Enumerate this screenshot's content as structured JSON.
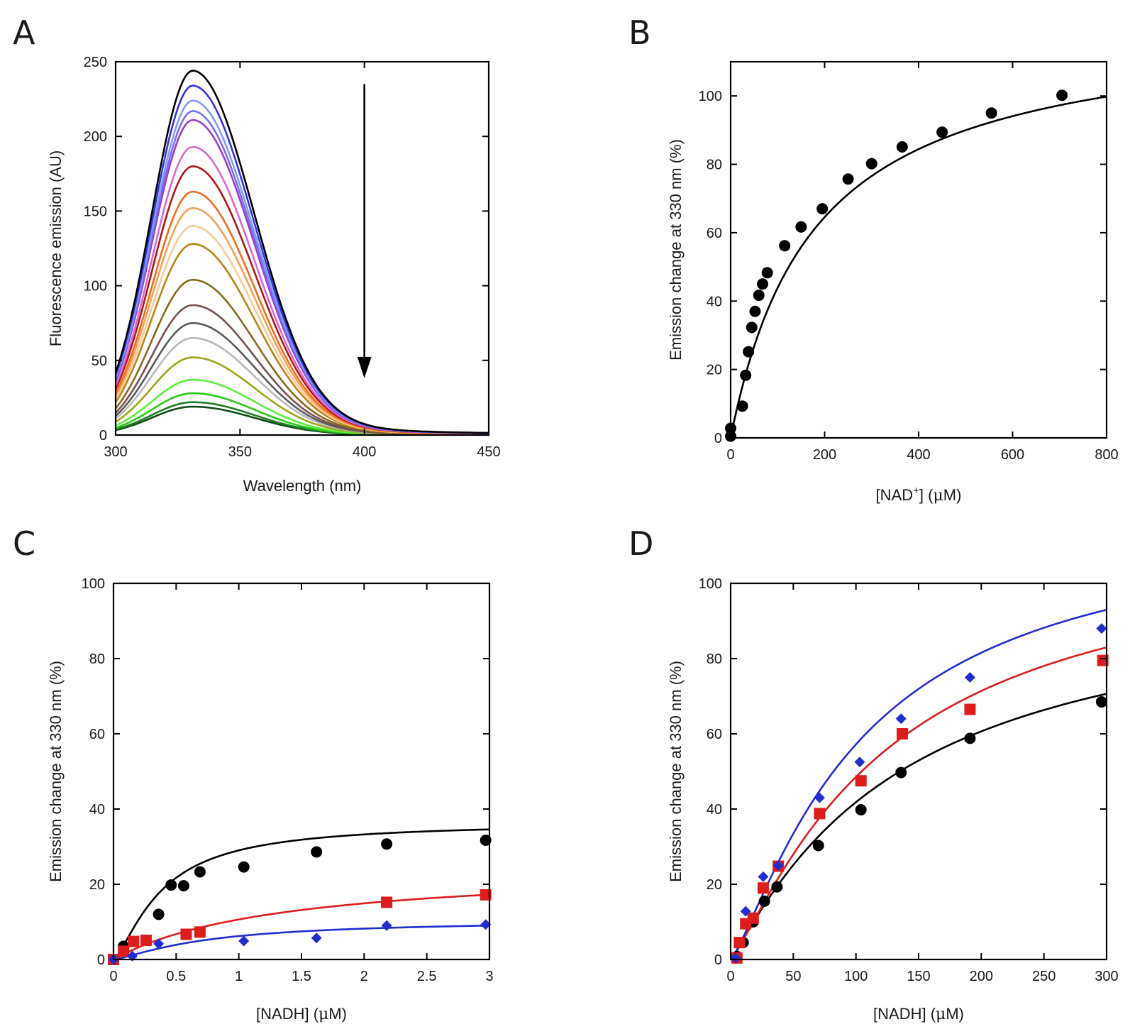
{
  "figure": {
    "panels": [
      "A",
      "B",
      "C",
      "D"
    ]
  },
  "chart_data": [
    {
      "panel": "A",
      "type": "line",
      "title": "",
      "xlabel": "Wavelength (nm)",
      "ylabel": "Fluorescence emission (AU)",
      "xlim": [
        300,
        450
      ],
      "ylim": [
        0,
        250
      ],
      "xticks": [
        300,
        350,
        400,
        450
      ],
      "yticks": [
        0,
        50,
        100,
        150,
        200,
        250
      ],
      "annotation": "arrow at 400 nm pointing downward (decreasing emission)",
      "arrow": {
        "x": 400,
        "y_from": 235,
        "y_to": 40
      },
      "peak_wavelength": 331,
      "series": [
        {
          "peak": 244,
          "color": "#000000"
        },
        {
          "peak": 234,
          "color": "#3333e6"
        },
        {
          "peak": 224,
          "color": "#7f9ff0"
        },
        {
          "peak": 217,
          "color": "#7a6cf0"
        },
        {
          "peak": 211,
          "color": "#9c3cc8"
        },
        {
          "peak": 193,
          "color": "#d968d3"
        },
        {
          "peak": 180,
          "color": "#b01414"
        },
        {
          "peak": 163,
          "color": "#ee6e1a"
        },
        {
          "peak": 152,
          "color": "#f5a055"
        },
        {
          "peak": 140,
          "color": "#f8cb97"
        },
        {
          "peak": 128,
          "color": "#bb8412"
        },
        {
          "peak": 104,
          "color": "#8c6918"
        },
        {
          "peak": 87,
          "color": "#7b4e4e"
        },
        {
          "peak": 75,
          "color": "#5a5a5a"
        },
        {
          "peak": 65,
          "color": "#b8b8b8"
        },
        {
          "peak": 52,
          "color": "#9ea51a"
        },
        {
          "peak": 37,
          "color": "#5cef3b"
        },
        {
          "peak": 28,
          "color": "#2bca16"
        },
        {
          "peak": 22,
          "color": "#1f7d1f"
        },
        {
          "peak": 19,
          "color": "#0f4d16"
        }
      ]
    },
    {
      "panel": "B",
      "type": "scatter",
      "title": "",
      "xlabel": "[NAD+] (μM)",
      "xlabel_parts": [
        "[NAD",
        "+",
        "] (",
        "μ",
        "M)"
      ],
      "ylabel": "Emission change at 330 nm (%)",
      "xlim": [
        0,
        800
      ],
      "ylim": [
        0,
        110
      ],
      "xticks": [
        0,
        200,
        400,
        600,
        800
      ],
      "yticks": [
        0,
        20,
        40,
        60,
        80,
        100
      ],
      "series": [
        {
          "name": "NAD+",
          "color": "#000000",
          "marker": "circle",
          "x": [
            0,
            0,
            25,
            32,
            38,
            45,
            52,
            60,
            68,
            78,
            115,
            150,
            195,
            250,
            300,
            365,
            450,
            555,
            705
          ],
          "y": [
            0.5,
            2.8,
            9.3,
            18.3,
            25.2,
            32.3,
            37.0,
            41.7,
            45.0,
            48.3,
            56.2,
            61.7,
            67.0,
            75.7,
            80.2,
            85.1,
            89.4,
            95.0,
            100.2
          ],
          "fit": {
            "model": "hyperbola",
            "vmax": 122,
            "k": 178
          }
        }
      ]
    },
    {
      "panel": "C",
      "type": "scatter",
      "title": "",
      "xlabel": "[NADH] (μM)",
      "xlabel_parts": [
        "[NADH] (",
        "μ",
        "M)"
      ],
      "ylabel": "Emission change at 330 nm (%)",
      "xlim": [
        0,
        3
      ],
      "ylim": [
        0,
        100
      ],
      "xticks": [
        0,
        0.5,
        1,
        1.5,
        2,
        2.5,
        3
      ],
      "xtick_labels": [
        "0",
        "0.5",
        "1",
        "1.5",
        "2",
        "2.5",
        "3"
      ],
      "yticks": [
        0,
        20,
        40,
        60,
        80,
        100
      ],
      "series": [
        {
          "name": "black",
          "color": "#000000",
          "marker": "circle",
          "x": [
            0,
            0.08,
            0.36,
            0.46,
            0.56,
            0.69,
            1.04,
            1.62,
            2.18,
            2.97
          ],
          "y": [
            0,
            3.5,
            12,
            19.8,
            19.6,
            23.3,
            24.6,
            28.6,
            30.7,
            31.7
          ],
          "fit": {
            "model": "sigmoidal",
            "vmax": 36.5,
            "k": 0.38,
            "n": 1.4
          }
        },
        {
          "name": "red",
          "color": "#dd1c1c",
          "marker": "square",
          "x": [
            0,
            0.08,
            0.16,
            0.26,
            0.58,
            0.69,
            2.18,
            2.97
          ],
          "y": [
            0,
            2.2,
            4.8,
            5.1,
            6.7,
            7.3,
            15.2,
            17.2
          ],
          "fit": {
            "model": "hyperbola",
            "vmax": 25,
            "k": 1.35
          }
        },
        {
          "name": "blue",
          "color": "#1f2ecf",
          "marker": "diamond",
          "x": [
            0,
            0.15,
            0.36,
            1.04,
            1.62,
            2.18,
            2.97
          ],
          "y": [
            0,
            0.9,
            4.2,
            4.9,
            5.7,
            9.0,
            9.3
          ],
          "fit": {
            "model": "sigmoidal",
            "vmax": 10.5,
            "k": 0.75,
            "n": 1.3
          }
        }
      ]
    },
    {
      "panel": "D",
      "type": "scatter",
      "title": "",
      "xlabel": "[NADH] (μM)",
      "xlabel_parts": [
        "[NADH] (",
        "μ",
        "M)"
      ],
      "ylabel": "Emission change at 330 nm (%)",
      "xlim": [
        0,
        300
      ],
      "ylim": [
        0,
        100
      ],
      "xticks": [
        0,
        50,
        100,
        150,
        200,
        250,
        300
      ],
      "yticks": [
        0,
        20,
        40,
        60,
        80,
        100
      ],
      "series": [
        {
          "name": "black",
          "color": "#000000",
          "marker": "circle",
          "x": [
            5,
            10,
            18,
            27,
            37,
            70,
            104,
            136,
            191,
            296
          ],
          "y": [
            0.8,
            4.5,
            10,
            15.5,
            19.3,
            30.3,
            39.8,
            49.7,
            58.8,
            68.5
          ],
          "fit": {
            "model": "sigmoidal",
            "vmax": 100,
            "k": 135,
            "n": 1.1
          }
        },
        {
          "name": "red",
          "color": "#dd1c1c",
          "marker": "square",
          "x": [
            5,
            7,
            12,
            18,
            26,
            38,
            71,
            104,
            137,
            191,
            297
          ],
          "y": [
            0.4,
            4.5,
            9.5,
            11,
            19,
            24.8,
            38.8,
            47.5,
            60,
            66.5,
            79.5
          ],
          "fit": {
            "model": "sigmoidal",
            "vmax": 112,
            "k": 125,
            "n": 1.2
          }
        },
        {
          "name": "blue",
          "color": "#1f2ecf",
          "marker": "diamond",
          "x": [
            4,
            12,
            26,
            38,
            71,
            103,
            136,
            191,
            296
          ],
          "y": [
            0.4,
            12.8,
            22,
            25,
            43,
            52.5,
            64,
            75,
            88
          ],
          "fit": {
            "model": "sigmoidal",
            "vmax": 118,
            "k": 105,
            "n": 1.25
          }
        }
      ]
    }
  ]
}
